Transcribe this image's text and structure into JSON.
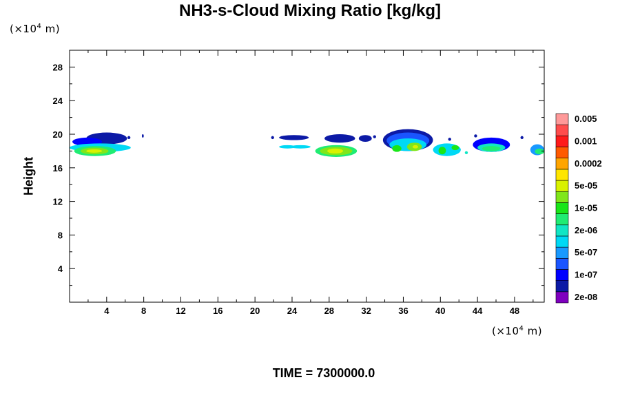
{
  "chart_data": {
    "type": "heatmap",
    "title": "NH3-s-Cloud Mixing Ratio [kg/kg]",
    "ylabel": "Height",
    "x_unit": {
      "prefix": "(×10",
      "exp": "4",
      "suffix": " m)"
    },
    "y_unit": {
      "prefix": "(×10",
      "exp": "4",
      "suffix": " m)"
    },
    "xlim": [
      0,
      51.2
    ],
    "ylim": [
      0,
      30
    ],
    "x_ticks": [
      4,
      8,
      12,
      16,
      20,
      24,
      28,
      32,
      36,
      40,
      44,
      48
    ],
    "y_ticks": [
      4,
      8,
      12,
      16,
      20,
      24,
      28
    ],
    "x_tick_labels": [
      "4",
      "8",
      "12",
      "16",
      "20",
      "24",
      "28",
      "32",
      "36",
      "40",
      "44",
      "48"
    ],
    "y_tick_labels": [
      "4",
      "8",
      "12",
      "16",
      "20",
      "24",
      "28"
    ],
    "footer": "TIME = 7300000.0",
    "colorbar": {
      "colors": [
        "#7f00bf",
        "#0c1aa6",
        "#0000ff",
        "#1a55ff",
        "#1999ff",
        "#00d9f5",
        "#11e6c4",
        "#20ec73",
        "#19e619",
        "#80e61a",
        "#d9f200",
        "#ffe600",
        "#ffa500",
        "#ff5a00",
        "#ff1a1a",
        "#ff4c4c",
        "#ff9999"
      ],
      "labels": [
        "2e-08",
        "1e-07",
        "5e-07",
        "2e-06",
        "1e-05",
        "5e-05",
        "0.0002",
        "0.001",
        "0.005"
      ]
    },
    "contours": [
      {
        "x": [
          1.8,
          6.2
        ],
        "y": [
          18.8,
          20.2
        ],
        "level": 1
      },
      {
        "x": [
          0.3,
          3.5
        ],
        "y": [
          18.6,
          19.6
        ],
        "level": 2
      },
      {
        "x": [
          0.0,
          6.6
        ],
        "y": [
          17.9,
          18.9
        ],
        "level": 5
      },
      {
        "x": [
          0.5,
          5.0
        ],
        "y": [
          17.4,
          18.6
        ],
        "level": 7
      },
      {
        "x": [
          1.2,
          4.2
        ],
        "y": [
          17.6,
          18.4
        ],
        "level": 9
      },
      {
        "x": [
          1.8,
          3.5
        ],
        "y": [
          17.8,
          18.2
        ],
        "level": 10
      },
      {
        "x": [
          7.8,
          8.0
        ],
        "y": [
          19.6,
          20.0
        ],
        "level": 1
      },
      {
        "x": [
          22.6,
          24.4
        ],
        "y": [
          18.3,
          18.7
        ],
        "level": 5
      },
      {
        "x": [
          23.8,
          26.0
        ],
        "y": [
          18.3,
          18.7
        ],
        "level": 5
      },
      {
        "x": [
          22.6,
          25.8
        ],
        "y": [
          19.3,
          19.9
        ],
        "level": 1
      },
      {
        "x": [
          27.5,
          30.8
        ],
        "y": [
          19.0,
          20.0
        ],
        "level": 1
      },
      {
        "x": [
          31.2,
          32.6
        ],
        "y": [
          19.1,
          19.9
        ],
        "level": 1
      },
      {
        "x": [
          26.5,
          31.0
        ],
        "y": [
          17.3,
          18.7
        ],
        "level": 7
      },
      {
        "x": [
          27.0,
          30.5
        ],
        "y": [
          17.5,
          18.5
        ],
        "level": 9
      },
      {
        "x": [
          27.8,
          29.5
        ],
        "y": [
          17.7,
          18.3
        ],
        "level": 10
      },
      {
        "x": [
          33.8,
          39.2
        ],
        "y": [
          18.0,
          20.6
        ],
        "level": 1
      },
      {
        "x": [
          34.2,
          38.8
        ],
        "y": [
          18.3,
          20.2
        ],
        "level": 3
      },
      {
        "x": [
          34.5,
          38.5
        ],
        "y": [
          18.0,
          19.5
        ],
        "level": 5
      },
      {
        "x": [
          34.8,
          35.8
        ],
        "y": [
          17.9,
          18.7
        ],
        "level": 8
      },
      {
        "x": [
          36.4,
          38.0
        ],
        "y": [
          18.0,
          19.0
        ],
        "level": 9
      },
      {
        "x": [
          37.0,
          37.6
        ],
        "y": [
          18.3,
          18.7
        ],
        "level": 10
      },
      {
        "x": [
          39.2,
          42.2
        ],
        "y": [
          17.4,
          18.9
        ],
        "level": 5
      },
      {
        "x": [
          39.8,
          40.6
        ],
        "y": [
          17.6,
          18.5
        ],
        "level": 8
      },
      {
        "x": [
          41.2,
          42.0
        ],
        "y": [
          18.1,
          18.7
        ],
        "level": 8
      },
      {
        "x": [
          43.5,
          47.5
        ],
        "y": [
          17.9,
          19.6
        ],
        "level": 2
      },
      {
        "x": [
          44.0,
          47.0
        ],
        "y": [
          17.9,
          18.9
        ],
        "level": 6
      },
      {
        "x": [
          44.5,
          46.5
        ],
        "y": [
          18.0,
          18.6
        ],
        "level": 7
      },
      {
        "x": [
          49.7,
          51.2
        ],
        "y": [
          17.5,
          18.8
        ],
        "level": 4
      },
      {
        "x": [
          50.2,
          51.2
        ],
        "y": [
          17.6,
          18.3
        ],
        "level": 7
      }
    ],
    "specks": [
      {
        "x": 6.4,
        "y": 19.6,
        "level": 1
      },
      {
        "x": 41.0,
        "y": 19.4,
        "level": 1
      },
      {
        "x": 42.8,
        "y": 17.8,
        "level": 6
      },
      {
        "x": 43.8,
        "y": 19.8,
        "level": 1
      },
      {
        "x": 48.8,
        "y": 19.6,
        "level": 1
      },
      {
        "x": 32.9,
        "y": 19.7,
        "level": 1
      },
      {
        "x": 21.9,
        "y": 19.6,
        "level": 1
      }
    ]
  }
}
